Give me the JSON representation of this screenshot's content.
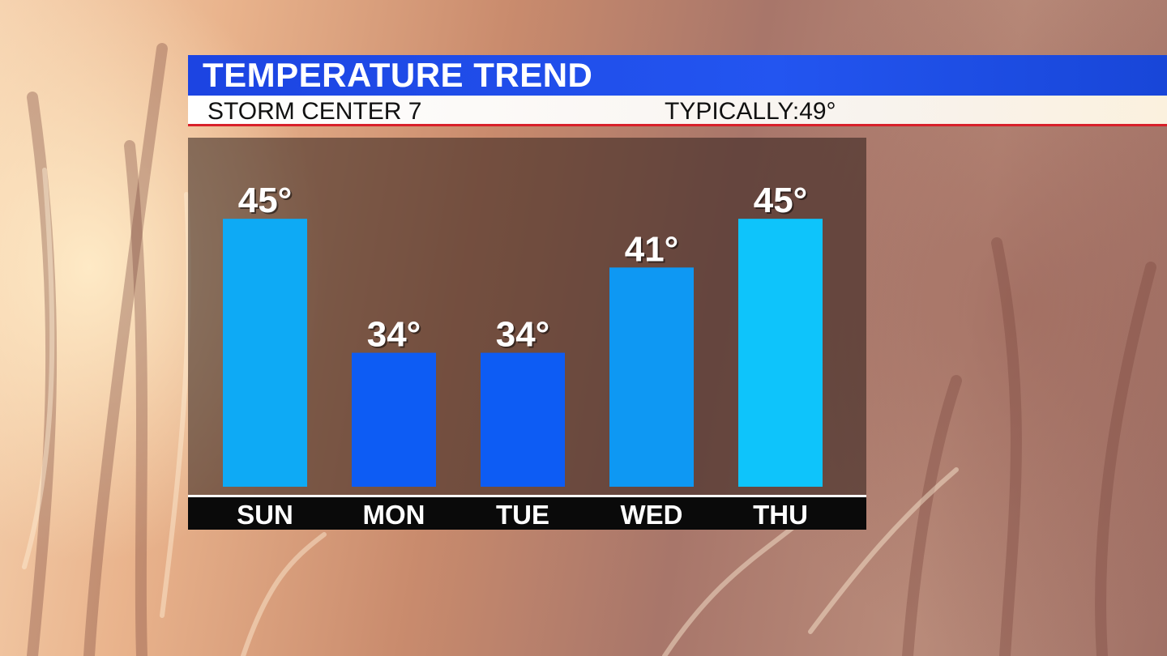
{
  "header": {
    "title": "TEMPERATURE TREND"
  },
  "subheader": {
    "station": "STORM CENTER 7",
    "typical_label": "TYPICALLY:",
    "typical_value": "49°"
  },
  "chart_data": {
    "type": "bar",
    "title": "TEMPERATURE TREND",
    "categories": [
      "SUN",
      "MON",
      "TUE",
      "WED",
      "THU"
    ],
    "values": [
      45,
      34,
      34,
      41,
      45
    ],
    "value_labels": [
      "45°",
      "34°",
      "34°",
      "41°",
      "45°"
    ],
    "unit": "°",
    "ylim": [
      23,
      49
    ],
    "grid": false,
    "legend": "none",
    "bar_colors": [
      "#0eaaf5",
      "#0d5cf4",
      "#0d5cf4",
      "#0e98f3",
      "#0ec4fb"
    ]
  },
  "colors": {
    "header_blue": "#1f4de8",
    "accent_red": "#d8202a"
  }
}
